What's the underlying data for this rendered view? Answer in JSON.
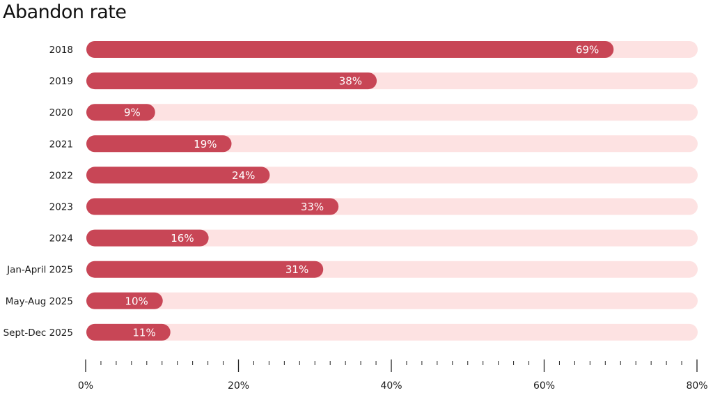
{
  "chart_data": {
    "type": "bar",
    "orientation": "horizontal",
    "title": "Abandon rate",
    "xlabel": "",
    "ylabel": "",
    "categories": [
      "2018",
      "2019",
      "2020",
      "2021",
      "2022",
      "2023",
      "2024",
      "Jan-April 2025",
      "May-Aug 2025",
      "Sept-Dec 2025"
    ],
    "values": [
      69,
      38,
      9,
      19,
      24,
      33,
      16,
      31,
      10,
      11
    ],
    "value_labels": [
      "69%",
      "38%",
      "9%",
      "19%",
      "24%",
      "33%",
      "16%",
      "31%",
      "10%",
      "11%"
    ],
    "xlim": [
      0,
      80
    ],
    "x_ticks": [
      0,
      20,
      40,
      60,
      80
    ],
    "x_tick_labels": [
      "0%",
      "20%",
      "40%",
      "60%",
      "80%"
    ],
    "minor_tick_step": 2,
    "grid": false,
    "colors": {
      "bar": "#c84656",
      "track": "#fde2e2",
      "axis": "#222222"
    }
  }
}
